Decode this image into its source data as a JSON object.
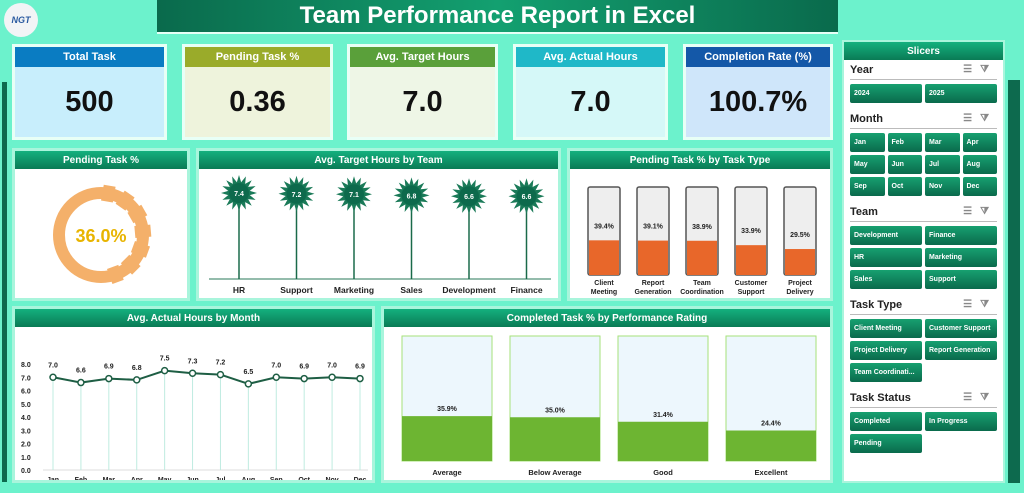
{
  "logo": "NGT",
  "title": "Team Performance Report in Excel",
  "kpis": [
    {
      "label": "Total Task",
      "value": "500",
      "header_color": "#0a7cc2",
      "body_color": "#c8eefc"
    },
    {
      "label": "Pending Task %",
      "value": "0.36",
      "header_color": "#9aab2a",
      "body_color": "#eef3dc"
    },
    {
      "label": "Avg. Target Hours",
      "value": "7.0",
      "header_color": "#5aa03a",
      "body_color": "#eef6e6"
    },
    {
      "label": "Avg. Actual Hours",
      "value": "7.0",
      "header_color": "#1fb8c8",
      "body_color": "#d5f8f8"
    },
    {
      "label": "Completion Rate (%)",
      "value": "100.7%",
      "header_color": "#1458a8",
      "body_color": "#cfe6fa"
    }
  ],
  "chart_data": [
    {
      "type": "pie",
      "title": "Pending Task %",
      "values": [
        36.0,
        64.0
      ],
      "label": "36.0%",
      "colors": [
        "#f4b06a",
        "#ffffff"
      ]
    },
    {
      "type": "bar",
      "title": "Avg. Target Hours by Team",
      "categories": [
        "HR",
        "Support",
        "Marketing",
        "Sales",
        "Development",
        "Finance"
      ],
      "values": [
        7.4,
        7.2,
        7.1,
        6.8,
        6.6,
        6.6
      ]
    },
    {
      "type": "bar",
      "title": "Pending Task % by Task Type",
      "categories": [
        "Client Meeting",
        "Report Generation",
        "Team Coordination",
        "Customer Support",
        "Project Delivery"
      ],
      "values": [
        39.4,
        39.1,
        38.9,
        33.9,
        29.5
      ],
      "ylim": [
        0,
        100
      ]
    },
    {
      "type": "line",
      "title": "Avg. Actual Hours by Month",
      "categories": [
        "Jan",
        "Feb",
        "Mar",
        "Apr",
        "May",
        "Jun",
        "Jul",
        "Aug",
        "Sep",
        "Oct",
        "Nov",
        "Dec"
      ],
      "values": [
        7.0,
        6.6,
        6.9,
        6.8,
        7.5,
        7.3,
        7.2,
        6.5,
        7.0,
        6.9,
        7.0,
        6.9
      ],
      "ylim": [
        0,
        8
      ],
      "yticks": [
        "0.0",
        "1.0",
        "2.0",
        "3.0",
        "4.0",
        "5.0",
        "6.0",
        "7.0",
        "8.0"
      ]
    },
    {
      "type": "bar",
      "title": "Completed Task % by Performance Rating",
      "categories": [
        "Average",
        "Below Average",
        "Good",
        "Excellent"
      ],
      "values": [
        35.9,
        35.0,
        31.4,
        24.4
      ],
      "ylim": [
        0,
        100
      ]
    }
  ],
  "slicers": {
    "title": "Slicers",
    "groups": [
      {
        "name": "Year",
        "cols": 2,
        "items": [
          "2024",
          "2025"
        ]
      },
      {
        "name": "Month",
        "cols": 4,
        "items": [
          "Jan",
          "Feb",
          "Mar",
          "Apr",
          "May",
          "Jun",
          "Jul",
          "Aug",
          "Sep",
          "Oct",
          "Nov",
          "Dec"
        ]
      },
      {
        "name": "Team",
        "cols": 2,
        "items": [
          "Development",
          "Finance",
          "HR",
          "Marketing",
          "Sales",
          "Support"
        ]
      },
      {
        "name": "Task Type",
        "cols": 2,
        "items": [
          "Client Meeting",
          "Customer Support",
          "Project Delivery",
          "Report Generation",
          "Team Coordinati..."
        ]
      },
      {
        "name": "Task Status",
        "cols": 2,
        "items": [
          "Completed",
          "In Progress",
          "Pending"
        ]
      }
    ]
  }
}
